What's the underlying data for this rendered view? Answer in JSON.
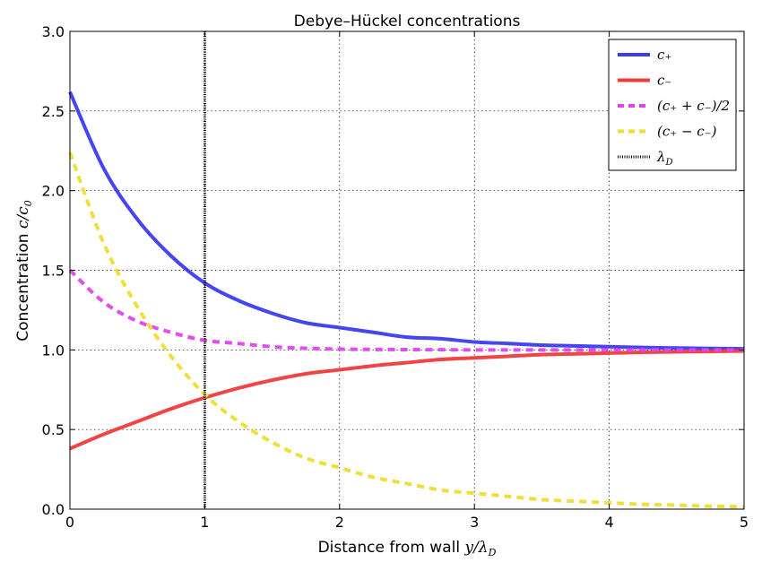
{
  "chart_data": {
    "type": "line",
    "title": "Debye–Hückel concentrations",
    "xlabel_text": "Distance from wall ",
    "xlabel_math": "y/λ",
    "xlabel_sub": "D",
    "ylabel_text": "Concentration ",
    "ylabel_math": "c/c",
    "ylabel_sub": "0",
    "xlim": [
      0,
      5
    ],
    "ylim": [
      0,
      3.0
    ],
    "xticks": [
      "0",
      "1",
      "2",
      "3",
      "4",
      "5"
    ],
    "yticks": [
      "0.0",
      "0.5",
      "1.0",
      "1.5",
      "2.0",
      "2.5",
      "3.0"
    ],
    "grid": true,
    "legend_position": "top-right",
    "x": [
      0,
      0.25,
      0.5,
      0.75,
      1,
      1.25,
      1.5,
      1.75,
      2,
      2.25,
      2.5,
      2.75,
      3,
      3.25,
      3.5,
      3.75,
      4,
      4.25,
      4.5,
      4.75,
      5
    ],
    "series": [
      {
        "name": "c+",
        "legend": "c₊",
        "color": "#3b3bf0",
        "style": "solid",
        "values": [
          2.62,
          2.14,
          1.82,
          1.59,
          1.42,
          1.31,
          1.23,
          1.17,
          1.14,
          1.11,
          1.08,
          1.07,
          1.05,
          1.04,
          1.03,
          1.025,
          1.02,
          1.015,
          1.012,
          1.009,
          1.007
        ]
      },
      {
        "name": "c-",
        "legend": "c₋",
        "color": "#f03b3b",
        "style": "solid",
        "values": [
          0.38,
          0.47,
          0.55,
          0.63,
          0.7,
          0.76,
          0.81,
          0.85,
          0.875,
          0.9,
          0.92,
          0.94,
          0.95,
          0.96,
          0.97,
          0.975,
          0.98,
          0.985,
          0.988,
          0.99,
          0.993
        ]
      },
      {
        "name": "(c+ + c-)/2",
        "legend": "(c₊ + c₋)/2",
        "color": "#dd44ee",
        "style": "dashed",
        "values": [
          1.5,
          1.3,
          1.18,
          1.11,
          1.06,
          1.04,
          1.02,
          1.01,
          1.005,
          1.003,
          1.002,
          1.001,
          1.0,
          1.0,
          1.0,
          1.0,
          1.0,
          1.0,
          1.0,
          1.0,
          1.0
        ]
      },
      {
        "name": "(c+ - c-)",
        "legend": "(c₊ − c₋)",
        "color": "#eedd33",
        "style": "dashed",
        "values": [
          2.24,
          1.67,
          1.27,
          0.96,
          0.72,
          0.55,
          0.42,
          0.32,
          0.26,
          0.2,
          0.16,
          0.12,
          0.1,
          0.08,
          0.06,
          0.05,
          0.04,
          0.03,
          0.025,
          0.018,
          0.015
        ]
      }
    ],
    "vline": {
      "name": "λD",
      "legend": "λ",
      "legend_sub": "D",
      "x": 1,
      "color": "#000000",
      "style": "dotted"
    }
  }
}
